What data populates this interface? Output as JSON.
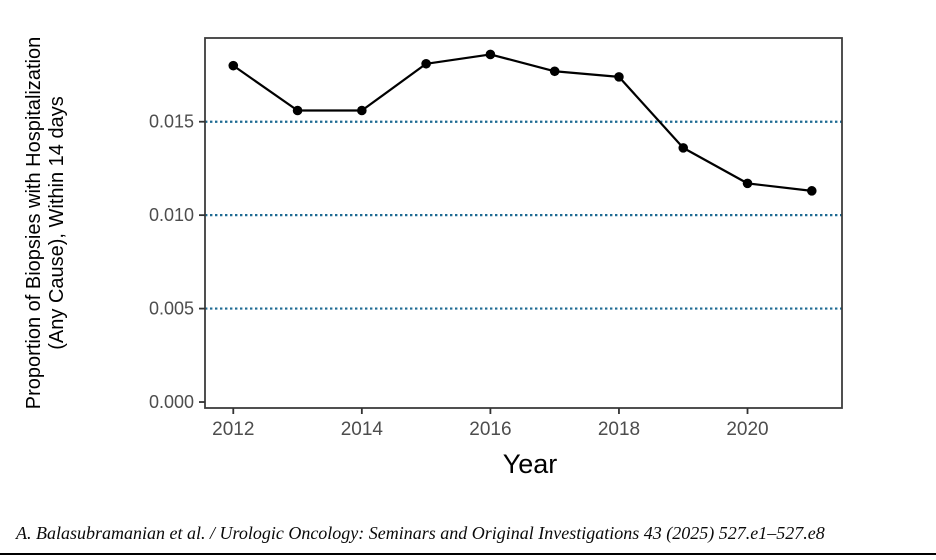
{
  "chart_data": {
    "type": "line",
    "title": "",
    "xlabel": "Year",
    "ylabel_line1": "Proportion of Biopsies with Hospitalization",
    "ylabel_line2": "(Any Cause), Within 14 days",
    "x": [
      2012,
      2013,
      2014,
      2015,
      2016,
      2017,
      2018,
      2019,
      2020,
      2021
    ],
    "values": [
      0.018,
      0.0156,
      0.0156,
      0.0181,
      0.0186,
      0.0177,
      0.0174,
      0.0136,
      0.0117,
      0.0113
    ],
    "series_name": "Proportion of biopsies with hospitalization (any cause) within 14 days",
    "x_ticks": [
      2012,
      2014,
      2016,
      2018,
      2020
    ],
    "y_ticks": [
      0,
      0.005,
      0.01,
      0.015
    ],
    "y_tick_labels": [
      "0.000",
      "0.005",
      "0.010",
      "0.015"
    ],
    "reference_lines": [
      0.005,
      0.01,
      0.015
    ],
    "xlim": [
      2011.56,
      2021.47
    ],
    "ylim": [
      -0.00032,
      0.01948
    ],
    "legend": "none",
    "grid": "horizontal dotted reference lines only",
    "colors": {
      "line": "#000000",
      "point": "#000000",
      "gridline": "#1f6b93",
      "panel_border": "#3c3c3c",
      "tick_mark": "#333333",
      "tick_label": "#4d4d4d",
      "axis_title": "#000000"
    }
  },
  "footer": {
    "citation": "A. Balasubramanian et al. / Urologic Oncology: Seminars and Original Investigations 43 (2025) 527.e1–527.e8"
  }
}
